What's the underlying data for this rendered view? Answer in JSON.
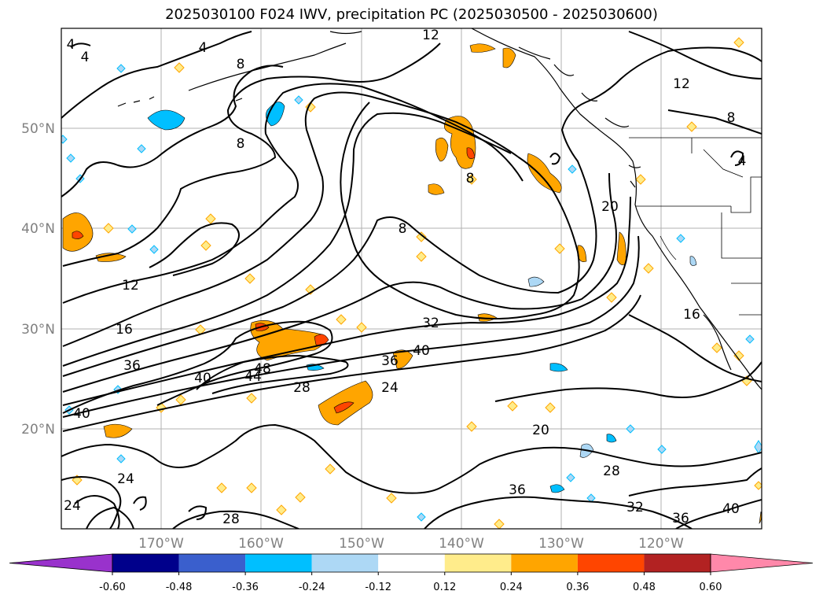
{
  "title": "2025030100 F024 IWV, precipitation PC (2025030500 - 2025030600)",
  "map": {
    "lat_labels": [
      "50°N",
      "40°N",
      "30°N",
      "20°N"
    ],
    "lon_labels": [
      "170°W",
      "160°W",
      "150°W",
      "140°W",
      "130°W",
      "120°W"
    ],
    "contour_labels": [
      "4",
      "4",
      "4",
      "8",
      "8",
      "8",
      "8",
      "8",
      "12",
      "12",
      "12",
      "16",
      "16",
      "20",
      "20",
      "24",
      "24",
      "24",
      "28",
      "28",
      "28",
      "32",
      "32",
      "36",
      "36",
      "36",
      "36",
      "40",
      "40",
      "40",
      "40",
      "44",
      "48",
      "4"
    ]
  },
  "colorbar": {
    "ticks": [
      "-0.60",
      "-0.48",
      "-0.36",
      "-0.24",
      "-0.12",
      "0.12",
      "0.24",
      "0.36",
      "0.48",
      "0.60"
    ],
    "colors": [
      "#9932cc",
      "#00008b",
      "#3a5fcd",
      "#00bfff",
      "#add8f5",
      "#ffffff",
      "#ffec8b",
      "#ffa500",
      "#ff4500",
      "#b22222",
      "#ff88aa"
    ]
  }
}
